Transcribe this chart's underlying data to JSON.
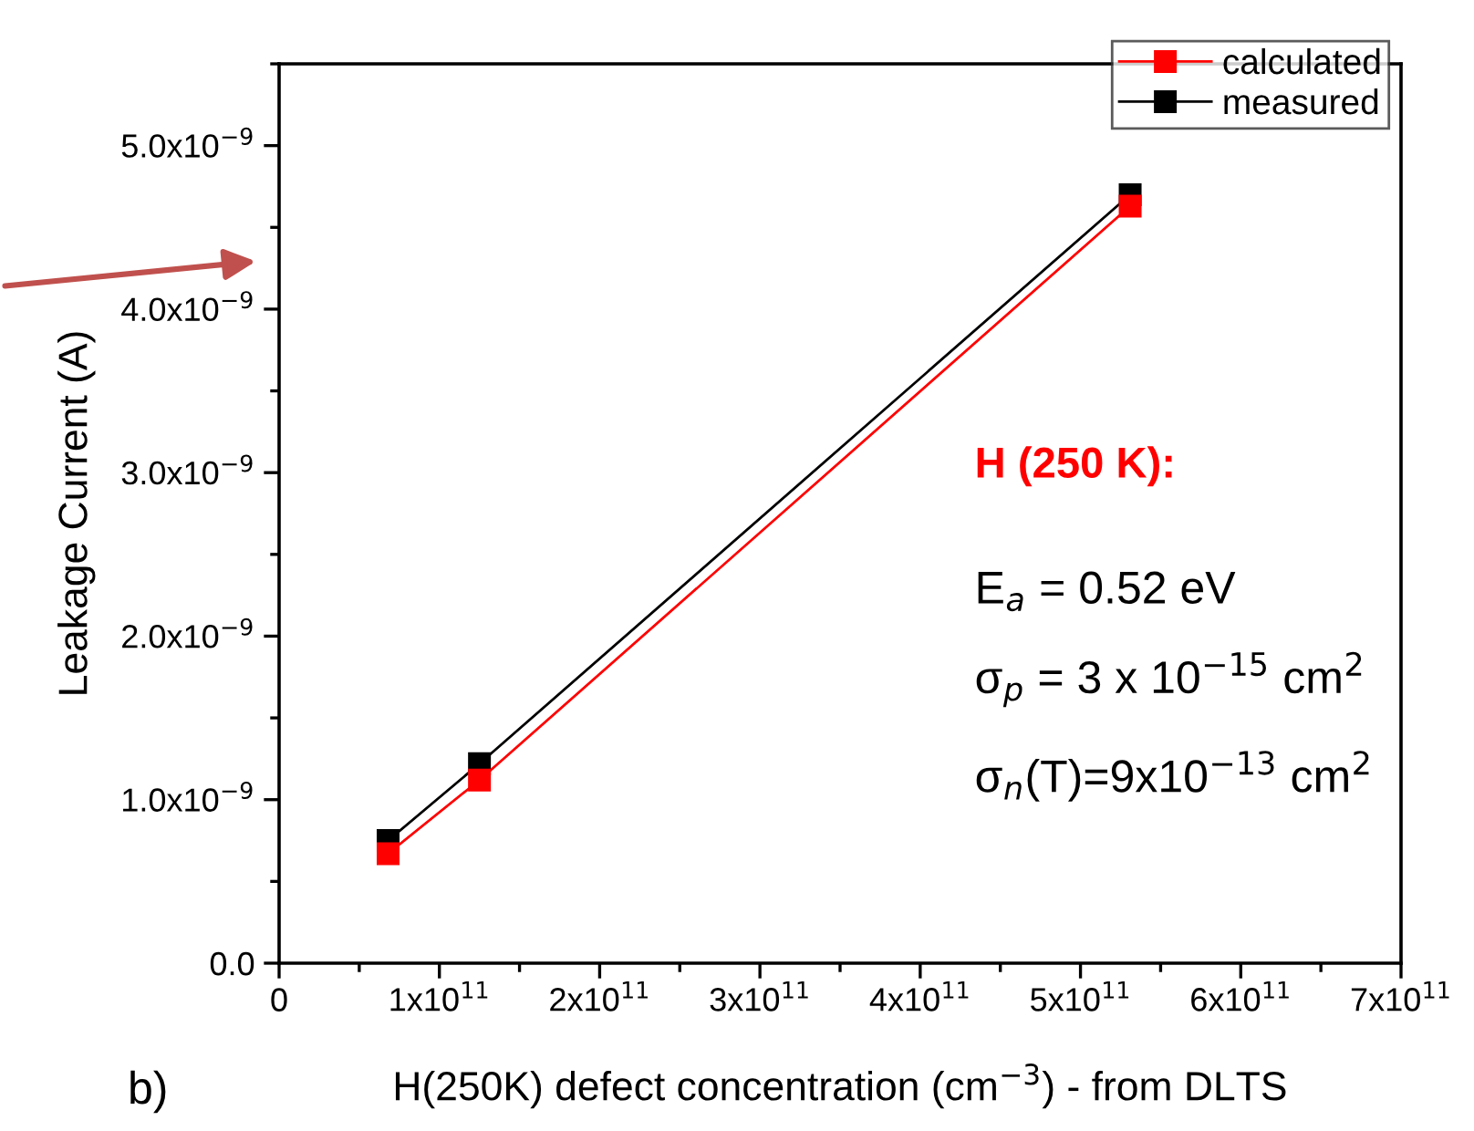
{
  "chart_data": {
    "type": "line",
    "xlabel": "H(250K) defect concentration (cm$^{−3}$) - from DLTS",
    "ylabel": "Leakage Current (A)",
    "x": [
      68000000000.0,
      125000000000.0,
      531000000000.0
    ],
    "series": [
      {
        "name": "calculated",
        "color": "#ff0000",
        "values": [
          6.7e-10,
          1.12e-09,
          4.63e-09
        ]
      },
      {
        "name": "measured",
        "color": "#000000",
        "values": [
          7.5e-10,
          1.22e-09,
          4.7e-09
        ]
      }
    ],
    "marker": "square",
    "line_style": "solid",
    "legend": "top right",
    "grid": false,
    "xlim": [
      0,
      700000000000.0
    ],
    "ylim": [
      0,
      5.5e-09
    ],
    "xticks": [
      {
        "value": 0,
        "label": "0"
      },
      {
        "value": 50000000000.0,
        "label": null
      },
      {
        "value": 100000000000.0,
        "label": "1x10$^{11}$"
      },
      {
        "value": 150000000000.0,
        "label": null
      },
      {
        "value": 200000000000.0,
        "label": "2x10$^{11}$"
      },
      {
        "value": 250000000000.0,
        "label": null
      },
      {
        "value": 300000000000.0,
        "label": "3x10$^{11}$"
      },
      {
        "value": 350000000000.0,
        "label": null
      },
      {
        "value": 400000000000.0,
        "label": "4x10$^{11}$"
      },
      {
        "value": 450000000000.0,
        "label": null
      },
      {
        "value": 500000000000.0,
        "label": "5x10$^{11}$"
      },
      {
        "value": 550000000000.0,
        "label": null
      },
      {
        "value": 600000000000.0,
        "label": "6x10$^{11}$"
      },
      {
        "value": 650000000000.0,
        "label": null
      },
      {
        "value": 700000000000.0,
        "label": "7x10$^{11}$"
      }
    ],
    "yticks": [
      {
        "value": 0,
        "label": "0.0"
      },
      {
        "value": 5e-10,
        "label": null
      },
      {
        "value": 1e-09,
        "label": "1.0x10$^{−9}$"
      },
      {
        "value": 1.5e-09,
        "label": null
      },
      {
        "value": 2e-09,
        "label": "2.0x10$^{−9}$"
      },
      {
        "value": 2.5e-09,
        "label": null
      },
      {
        "value": 3e-09,
        "label": "3.0x10$^{−9}$"
      },
      {
        "value": 3.5e-09,
        "label": null
      },
      {
        "value": 4e-09,
        "label": "4.0x10$^{−9}$"
      },
      {
        "value": 4.5e-09,
        "label": null
      },
      {
        "value": 5e-09,
        "label": "5.0x10$^{−9}$"
      },
      {
        "value": 5.5e-09,
        "label": null
      }
    ],
    "annotations": [
      "H (250 K):",
      "E$_{a}$ = 0.52 eV",
      "σ$_{p}$ = 3 x 10$^{−15}$ cm$^{2}$",
      "σ$_{n}$(T)=9x10$^{−13}$ cm$^{2}$",
      "b)"
    ]
  }
}
